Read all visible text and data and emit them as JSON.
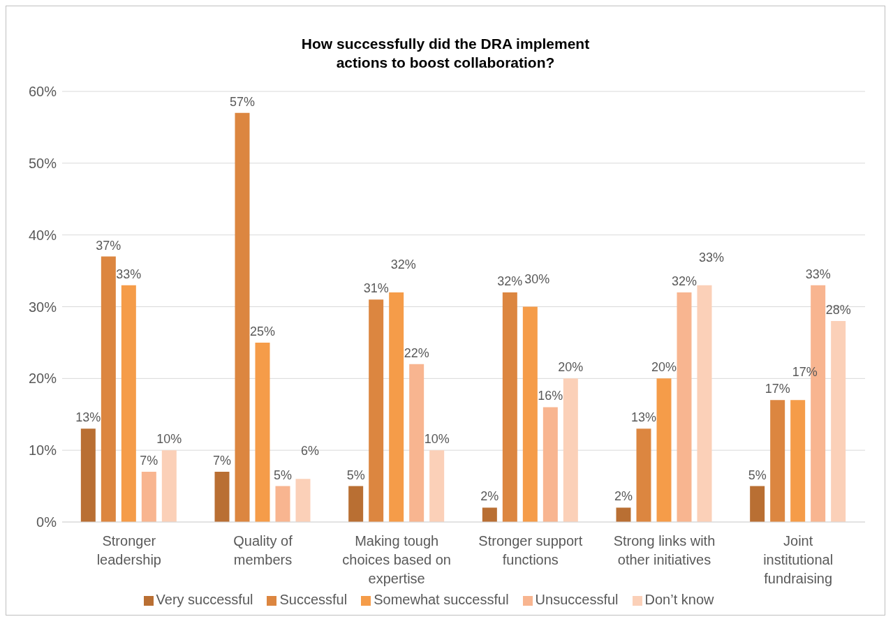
{
  "chart_data": {
    "type": "bar",
    "title": "How successfully did the DRA implement\nactions to boost collaboration?",
    "categories": [
      "Stronger leadership",
      "Quality of members",
      "Making tough choices based on expertise",
      "Stronger support functions",
      "Strong links with other initiatives",
      "Joint institutional fundraising"
    ],
    "series": [
      {
        "name": "Very successful",
        "color": "#b96f33",
        "values": [
          13,
          7,
          5,
          2,
          2,
          5
        ],
        "value_labels": [
          "13%",
          "7%",
          "5%",
          "2%",
          "2%",
          "5%"
        ]
      },
      {
        "name": "Successful",
        "color": "#dc8640",
        "values": [
          37,
          57,
          31,
          32,
          13,
          17
        ],
        "value_labels": [
          "37%",
          "57%",
          "31%",
          "32%",
          "13%",
          "17%"
        ]
      },
      {
        "name": "Somewhat successful",
        "color": "#f59c49",
        "values": [
          33,
          25,
          32,
          30,
          20,
          17
        ],
        "value_labels": [
          "33%",
          "25%",
          "32%",
          "30%",
          "20%",
          "17%"
        ]
      },
      {
        "name": "Unsuccessful",
        "color": "#f8b590",
        "values": [
          7,
          5,
          22,
          16,
          32,
          33
        ],
        "value_labels": [
          "7%",
          "5%",
          "22%",
          "16%",
          "32%",
          "33%"
        ]
      },
      {
        "name": "Don’t know",
        "color": "#fbd0b8",
        "values": [
          10,
          6,
          10,
          20,
          33,
          28
        ],
        "value_labels": [
          "10%",
          "6%",
          "10%",
          "20%",
          "33%",
          "28%"
        ]
      }
    ],
    "ylim": [
      0,
      60
    ],
    "yticks": [
      {
        "value": 0,
        "label": "0%"
      },
      {
        "value": 10,
        "label": "10%"
      },
      {
        "value": 20,
        "label": "20%"
      },
      {
        "value": 30,
        "label": "30%"
      },
      {
        "value": 40,
        "label": "40%"
      },
      {
        "value": 50,
        "label": "50%"
      },
      {
        "value": 60,
        "label": "60%"
      }
    ],
    "grid": "y",
    "legend": "bottom"
  }
}
